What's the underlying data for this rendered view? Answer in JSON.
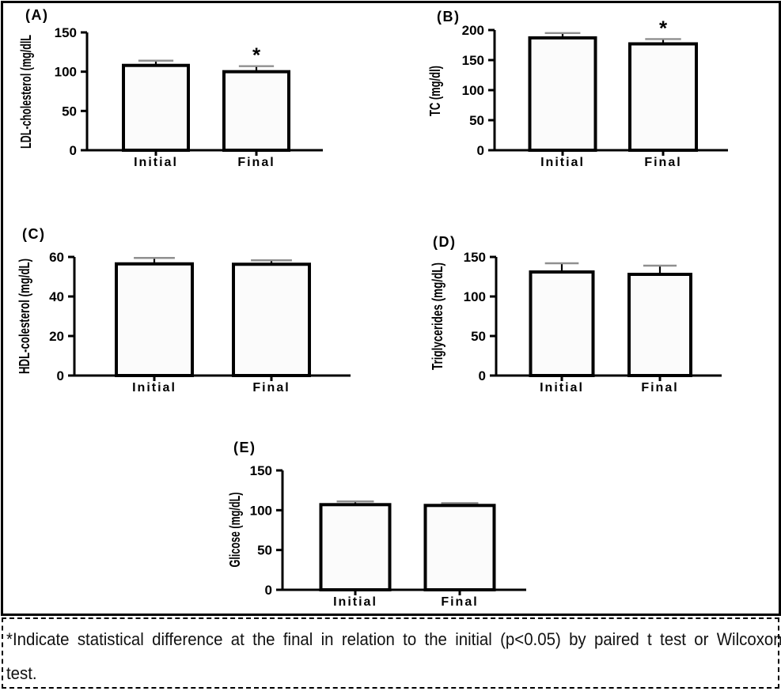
{
  "caption": {
    "line1": "*Indicate statistical difference at the final in relation to the initial (p<0.05) by paired t test or Wilcoxon",
    "line2": "test."
  },
  "chart_data": [
    {
      "type": "bar",
      "panel": "(A)",
      "ylabel": "LDL-cholesterol (mg/dlL",
      "categories": [
        "Initial",
        "Final"
      ],
      "values": [
        108,
        100
      ],
      "errors": [
        6,
        7
      ],
      "significant": [
        false,
        true
      ],
      "ylim": [
        0,
        150
      ],
      "yticks": [
        0,
        50,
        100,
        150
      ],
      "sig_marker": "*"
    },
    {
      "type": "bar",
      "panel": "(B)",
      "ylabel": "TC (mg/dl)",
      "categories": [
        "Initial",
        "Final"
      ],
      "values": [
        187,
        177
      ],
      "errors": [
        8,
        8
      ],
      "significant": [
        false,
        true
      ],
      "ylim": [
        0,
        200
      ],
      "yticks": [
        0,
        50,
        100,
        150,
        200
      ],
      "sig_marker": "*"
    },
    {
      "type": "bar",
      "panel": "(C)",
      "ylabel": "HDL-colesterol (mg/dL)",
      "categories": [
        "Initial",
        "Final"
      ],
      "values": [
        56.5,
        56.3
      ],
      "errors": [
        3,
        2
      ],
      "significant": [
        false,
        false
      ],
      "ylim": [
        0,
        60
      ],
      "yticks": [
        0,
        20,
        40,
        60
      ],
      "sig_marker": "*"
    },
    {
      "type": "bar",
      "panel": "(D)",
      "ylabel": "Triglycerides (mg/dL)",
      "categories": [
        "Initial",
        "Final"
      ],
      "values": [
        131,
        128
      ],
      "errors": [
        11,
        11
      ],
      "significant": [
        false,
        false
      ],
      "ylim": [
        0,
        150
      ],
      "yticks": [
        0,
        50,
        100,
        150
      ],
      "sig_marker": "*"
    },
    {
      "type": "bar",
      "panel": "(E)",
      "ylabel": "Glicose (mg/dL)",
      "categories": [
        "Initial",
        "Final"
      ],
      "values": [
        107,
        106
      ],
      "errors": [
        4,
        3
      ],
      "significant": [
        false,
        false
      ],
      "ylim": [
        0,
        150
      ],
      "yticks": [
        0,
        50,
        100,
        150
      ],
      "sig_marker": "*"
    }
  ]
}
